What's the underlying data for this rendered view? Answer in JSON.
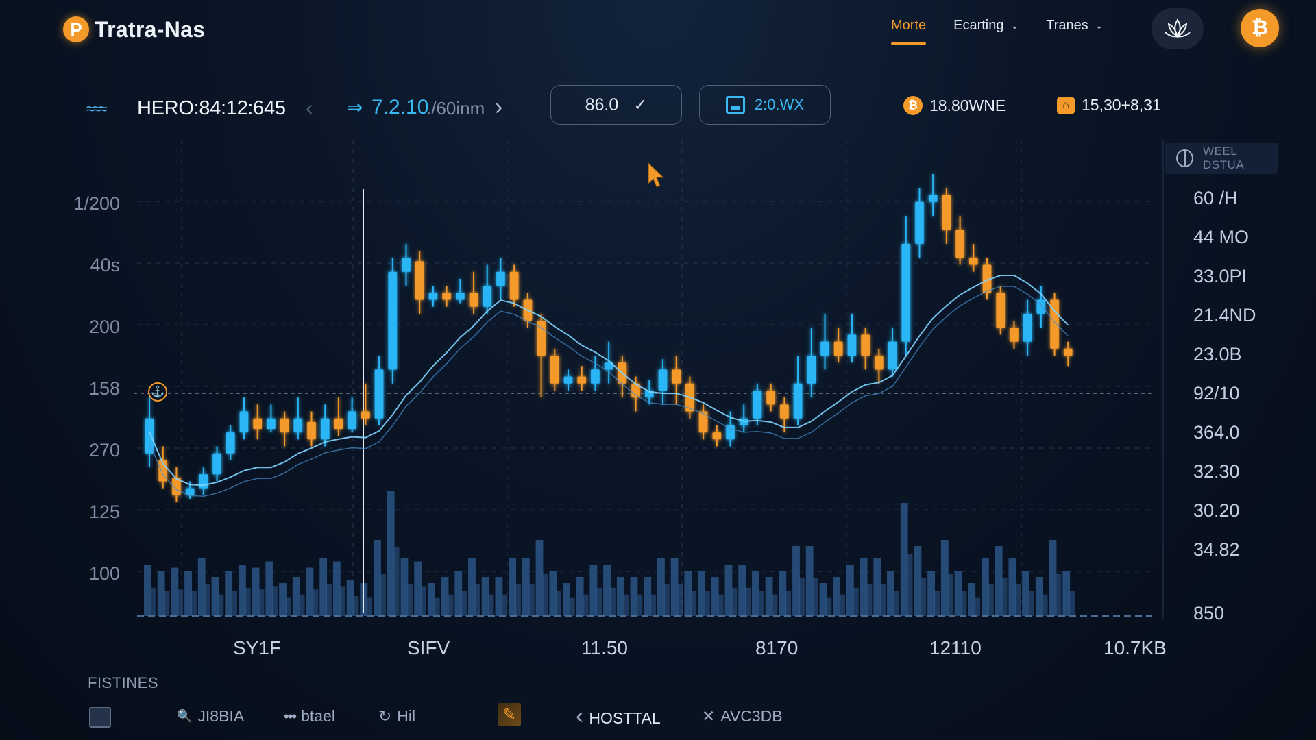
{
  "header": {
    "brand_logo_glyph": "P",
    "brand_name": "Tratra-Nas",
    "nav": [
      {
        "label": "Morte",
        "active": true
      },
      {
        "label": "Ecarting",
        "active": false
      },
      {
        "label": "Tranes",
        "active": false
      }
    ],
    "chevron_glyph": "⌄",
    "lotus_icon": "lotus-icon",
    "coin_glyph": "₿"
  },
  "toolbar": {
    "ticker": "HERO:84:12:645",
    "price_arrow": "⇒",
    "price": "7.2.10",
    "price_sub": "./60inm",
    "value_field": "86.0",
    "check_glyph": "✓",
    "save_label": "2:0.WX",
    "stat_1_glyph": "₿",
    "stat_1": "18.80WNE",
    "stat_2_glyph": "⌂",
    "stat_2": "15,30+8,31"
  },
  "chart": {
    "side_label": "WEEL DSTUA",
    "anchor_glyph": "⚓",
    "left_ticks": [
      "1/200",
      "40s",
      "200",
      "158",
      "270",
      "125",
      "100"
    ],
    "right_ticks": [
      "60 /H",
      "44 MO",
      "33.0PI",
      "21.4ND",
      "23.0B",
      "92/10",
      "364.0",
      "32.30",
      "30.20",
      "34.82",
      "850"
    ],
    "x_ticks": [
      "SY1F",
      "SIFV",
      "11.50",
      "8170",
      "12110",
      "10.7KB"
    ],
    "colors": {
      "up": "#29b6f6",
      "down": "#f39a2b",
      "grid": "#26384f",
      "volume": "#2f5d91"
    }
  },
  "chart_data": {
    "type": "candlestick",
    "title": "",
    "xlabel": "",
    "ylabel": "",
    "ylim": [
      125,
      1200
    ],
    "categories": [
      "SY1F",
      "SIFV",
      "11.50",
      "8170",
      "12110",
      "10.7KB"
    ],
    "series": [
      {
        "values": [
          [
            420,
            470,
            400,
            500
          ],
          [
            410,
            380,
            370,
            430
          ],
          [
            385,
            360,
            350,
            400
          ],
          [
            360,
            370,
            355,
            380
          ],
          [
            370,
            390,
            360,
            400
          ],
          [
            390,
            420,
            380,
            430
          ],
          [
            420,
            450,
            410,
            460
          ],
          [
            450,
            480,
            440,
            500
          ],
          [
            470,
            455,
            440,
            490
          ],
          [
            455,
            470,
            450,
            490
          ],
          [
            470,
            450,
            430,
            480
          ],
          [
            450,
            470,
            440,
            500
          ],
          [
            465,
            440,
            430,
            480
          ],
          [
            440,
            470,
            430,
            490
          ],
          [
            470,
            455,
            445,
            500
          ],
          [
            455,
            480,
            450,
            500
          ],
          [
            480,
            470,
            460,
            520
          ],
          [
            470,
            540,
            460,
            560
          ],
          [
            540,
            680,
            520,
            700
          ],
          [
            680,
            700,
            660,
            720
          ],
          [
            695,
            640,
            620,
            710
          ],
          [
            640,
            650,
            630,
            660
          ],
          [
            650,
            640,
            630,
            660
          ],
          [
            640,
            650,
            635,
            670
          ],
          [
            650,
            630,
            620,
            680
          ],
          [
            630,
            660,
            620,
            690
          ],
          [
            660,
            680,
            640,
            700
          ],
          [
            680,
            640,
            630,
            690
          ],
          [
            640,
            610,
            600,
            650
          ],
          [
            610,
            560,
            500,
            620
          ],
          [
            560,
            520,
            510,
            570
          ],
          [
            520,
            530,
            510,
            540
          ],
          [
            530,
            520,
            510,
            545
          ],
          [
            520,
            540,
            510,
            560
          ],
          [
            540,
            550,
            520,
            580
          ],
          [
            550,
            520,
            500,
            560
          ],
          [
            520,
            500,
            480,
            530
          ],
          [
            500,
            510,
            490,
            525
          ],
          [
            510,
            540,
            490,
            555
          ],
          [
            540,
            520,
            490,
            560
          ],
          [
            520,
            480,
            470,
            530
          ],
          [
            480,
            450,
            440,
            490
          ],
          [
            450,
            440,
            430,
            460
          ],
          [
            440,
            460,
            430,
            480
          ],
          [
            460,
            470,
            450,
            490
          ],
          [
            470,
            510,
            460,
            520
          ],
          [
            510,
            490,
            480,
            520
          ],
          [
            490,
            470,
            450,
            500
          ],
          [
            470,
            520,
            460,
            560
          ],
          [
            520,
            560,
            500,
            600
          ],
          [
            560,
            580,
            540,
            620
          ],
          [
            580,
            560,
            550,
            600
          ],
          [
            560,
            590,
            550,
            620
          ],
          [
            590,
            560,
            540,
            600
          ],
          [
            560,
            540,
            520,
            570
          ],
          [
            540,
            580,
            530,
            600
          ],
          [
            580,
            720,
            560,
            760
          ],
          [
            720,
            780,
            700,
            800
          ],
          [
            780,
            790,
            760,
            820
          ],
          [
            790,
            740,
            720,
            800
          ],
          [
            740,
            700,
            690,
            760
          ],
          [
            700,
            690,
            680,
            720
          ],
          [
            690,
            650,
            640,
            700
          ],
          [
            650,
            600,
            590,
            660
          ],
          [
            600,
            580,
            570,
            610
          ],
          [
            580,
            620,
            560,
            640
          ],
          [
            620,
            640,
            600,
            660
          ],
          [
            640,
            570,
            560,
            650
          ],
          [
            570,
            560,
            545,
            580
          ]
        ]
      }
    ]
  },
  "bottom": {
    "title": "FISTINES",
    "items": [
      {
        "icon": "grid-icon",
        "label": ""
      },
      {
        "icon": "search-icon",
        "glyph": "🔍",
        "label": "JI8BIA"
      },
      {
        "icon": "dots-icon",
        "glyph": "•••",
        "label": "btael"
      },
      {
        "icon": "refresh-icon",
        "glyph": "↻",
        "label": "Hil"
      },
      {
        "icon": "pen-icon",
        "glyph": "✎",
        "label": ""
      },
      {
        "icon": "back-icon",
        "glyph": "‹",
        "label": "HOSTTAL"
      },
      {
        "icon": "tool-icon",
        "glyph": "✕",
        "label": "AVC3DB"
      }
    ]
  }
}
